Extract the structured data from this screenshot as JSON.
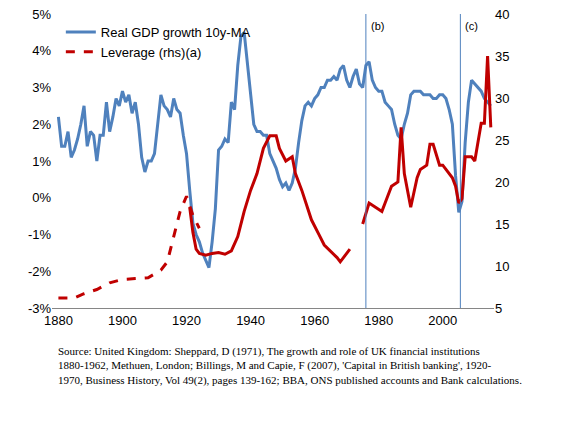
{
  "chart_data": {
    "type": "line",
    "xlim": [
      1878,
      2016
    ],
    "xticks": [
      1880,
      1900,
      1920,
      1940,
      1960,
      1980,
      2000
    ],
    "ylim": [
      -3,
      5
    ],
    "yticks": [
      {
        "value": -3,
        "label": "-3%"
      },
      {
        "value": -2,
        "label": "-2%"
      },
      {
        "value": -1,
        "label": "-1%"
      },
      {
        "value": 0,
        "label": "0%"
      },
      {
        "value": 1,
        "label": "1%"
      },
      {
        "value": 2,
        "label": "2%"
      },
      {
        "value": 3,
        "label": "3%"
      },
      {
        "value": 4,
        "label": "4%"
      },
      {
        "value": 5,
        "label": "5%"
      }
    ],
    "y2lim": [
      5,
      40
    ],
    "y2ticks": [
      5,
      10,
      15,
      20,
      25,
      30,
      35,
      40
    ],
    "grid": false,
    "legend": "upper left",
    "series": [
      {
        "name": "Real GDP growth 10y-MA",
        "color": "#4F81BD",
        "line_style": "solid",
        "x": [
          1880,
          1881,
          1882,
          1883,
          1884,
          1885,
          1886,
          1887,
          1888,
          1889,
          1890,
          1891,
          1892,
          1893,
          1894,
          1895,
          1896,
          1897,
          1898,
          1899,
          1900,
          1901,
          1902,
          1903,
          1904,
          1905,
          1906,
          1907,
          1908,
          1909,
          1910,
          1911,
          1912,
          1913,
          1914,
          1915,
          1916,
          1917,
          1918,
          1919,
          1920,
          1921,
          1922,
          1923,
          1924,
          1925,
          1926,
          1927,
          1928,
          1929,
          1930,
          1931,
          1932,
          1933,
          1934,
          1935,
          1936,
          1937,
          1938,
          1939,
          1940,
          1941,
          1942,
          1943,
          1944,
          1945,
          1946,
          1947,
          1948,
          1949,
          1950,
          1951,
          1952,
          1953,
          1954,
          1955,
          1956,
          1957,
          1958,
          1959,
          1960,
          1961,
          1962,
          1963,
          1964,
          1965,
          1966,
          1967,
          1968,
          1969,
          1970,
          1971,
          1972,
          1973,
          1974,
          1975,
          1976,
          1977,
          1978,
          1979,
          1980,
          1981,
          1982,
          1983,
          1984,
          1985,
          1986,
          1987,
          1988,
          1989,
          1990,
          1991,
          1992,
          1993,
          1994,
          1995,
          1996,
          1997,
          1998,
          1999,
          2000,
          2001,
          2002,
          2003,
          2004,
          2005,
          2006,
          2007,
          2008,
          2009,
          2010,
          2011,
          2012,
          2013,
          2014,
          2015
        ],
        "values": [
          2.2,
          1.4,
          1.4,
          1.8,
          1.1,
          1.3,
          1.6,
          2.0,
          2.5,
          1.4,
          1.8,
          1.7,
          1.0,
          1.7,
          1.7,
          2.6,
          1.8,
          2.2,
          2.7,
          2.5,
          2.9,
          2.6,
          2.8,
          2.3,
          2.6,
          2.0,
          1.1,
          0.7,
          1.0,
          1.0,
          1.2,
          2.1,
          2.8,
          2.5,
          2.4,
          2.2,
          2.7,
          2.4,
          2.3,
          1.7,
          1.2,
          0.2,
          -0.7,
          -1.0,
          -1.2,
          -1.5,
          -1.7,
          -1.9,
          -1.2,
          -0.3,
          1.3,
          1.4,
          1.6,
          1.5,
          2.6,
          2.4,
          3.6,
          4.4,
          4.5,
          3.6,
          2.7,
          2.0,
          1.8,
          1.8,
          1.7,
          1.7,
          1.2,
          1.0,
          0.8,
          0.5,
          0.3,
          0.4,
          0.2,
          0.4,
          0.8,
          1.5,
          2.1,
          2.5,
          2.6,
          2.5,
          2.7,
          2.8,
          3.0,
          3.0,
          3.2,
          3.2,
          3.3,
          3.2,
          3.5,
          3.6,
          3.2,
          3.0,
          3.3,
          3.5,
          3.1,
          3.0,
          3.6,
          3.7,
          3.2,
          3.0,
          2.9,
          2.9,
          2.6,
          2.5,
          2.4,
          2.0,
          1.7,
          1.6,
          2.0,
          2.3,
          2.8,
          2.9,
          2.9,
          2.9,
          2.8,
          2.8,
          2.8,
          2.7,
          2.7,
          2.8,
          2.8,
          2.7,
          2.4,
          2.0,
          0.6,
          -0.4,
          -0.1,
          1.5,
          2.6,
          3.2,
          3.1,
          3.0,
          2.9,
          2.7,
          2.6,
          2.5
        ]
      },
      {
        "name": "Leverage (rhs)(a)",
        "color": "#C00000",
        "line_style": "dashed",
        "axis": "y2",
        "x": [
          1880,
          1885,
          1888,
          1892,
          1896,
          1900,
          1904,
          1908,
          1912,
          1914,
          1916,
          1918,
          1920,
          1922,
          1924
        ],
        "values": [
          6.2,
          6.2,
          6.7,
          7.2,
          8.0,
          8.4,
          8.5,
          8.6,
          9.5,
          10.5,
          13.5,
          16.5,
          18.3,
          16.0,
          14.5
        ]
      },
      {
        "name": "Leverage (rhs)(a)",
        "color": "#C00000",
        "line_style": "solid",
        "axis": "y2",
        "x": [
          1921,
          1922,
          1923,
          1924,
          1926,
          1928,
          1930,
          1932,
          1934,
          1936,
          1938,
          1940,
          1942,
          1944,
          1946,
          1948,
          1949,
          1951,
          1953,
          1954,
          1956,
          1959,
          1961,
          1963,
          1967,
          1968,
          1970,
          1971,
          1973,
          1975,
          1977,
          1979,
          1981,
          1982,
          1984,
          1986,
          1987,
          1988,
          1989,
          1990,
          1992,
          1993,
          1995,
          1996,
          1997,
          1999,
          2000,
          2002,
          2003,
          2004,
          2005,
          2006,
          2007,
          2009,
          2010,
          2012,
          2013,
          2014,
          2015
        ],
        "values": [
          17.0,
          14.0,
          12.0,
          11.5,
          11.3,
          11.5,
          11.6,
          11.4,
          11.8,
          13.5,
          16.5,
          19.0,
          21.0,
          24.0,
          25.5,
          25.5,
          24.0,
          22.5,
          23.0,
          21.0,
          19.0,
          15.5,
          14.0,
          12.5,
          11.0,
          10.5,
          11.5,
          12.0,
          null,
          15.0,
          17.5,
          17.0,
          16.5,
          17.5,
          19.5,
          20.0,
          26.5,
          21.0,
          19.0,
          17.0,
          20.5,
          21.5,
          22.0,
          24.5,
          24.5,
          22.0,
          22.0,
          21.0,
          20.5,
          19.5,
          17.5,
          18.0,
          23.0,
          23.0,
          22.5,
          27.0,
          27.0,
          35.0,
          26.5
        ]
      }
    ],
    "vertical_lines": [
      {
        "x": 1976,
        "label": "(b)",
        "color": "#4F81BD"
      },
      {
        "x": 2005.5,
        "label": "(c)",
        "color": "#4F81BD"
      }
    ],
    "source": [
      "Source: United Kingdom: Sheppard, D (1971), The growth and role of UK financial institutions",
      "1880-1962, Methuen, London; Billings, M and Capie, F (2007), 'Capital in British banking', 1920-",
      "1970, Business History, Vol 49(2), pages 139-162; BBA, ONS published accounts and Bank calculations."
    ]
  }
}
